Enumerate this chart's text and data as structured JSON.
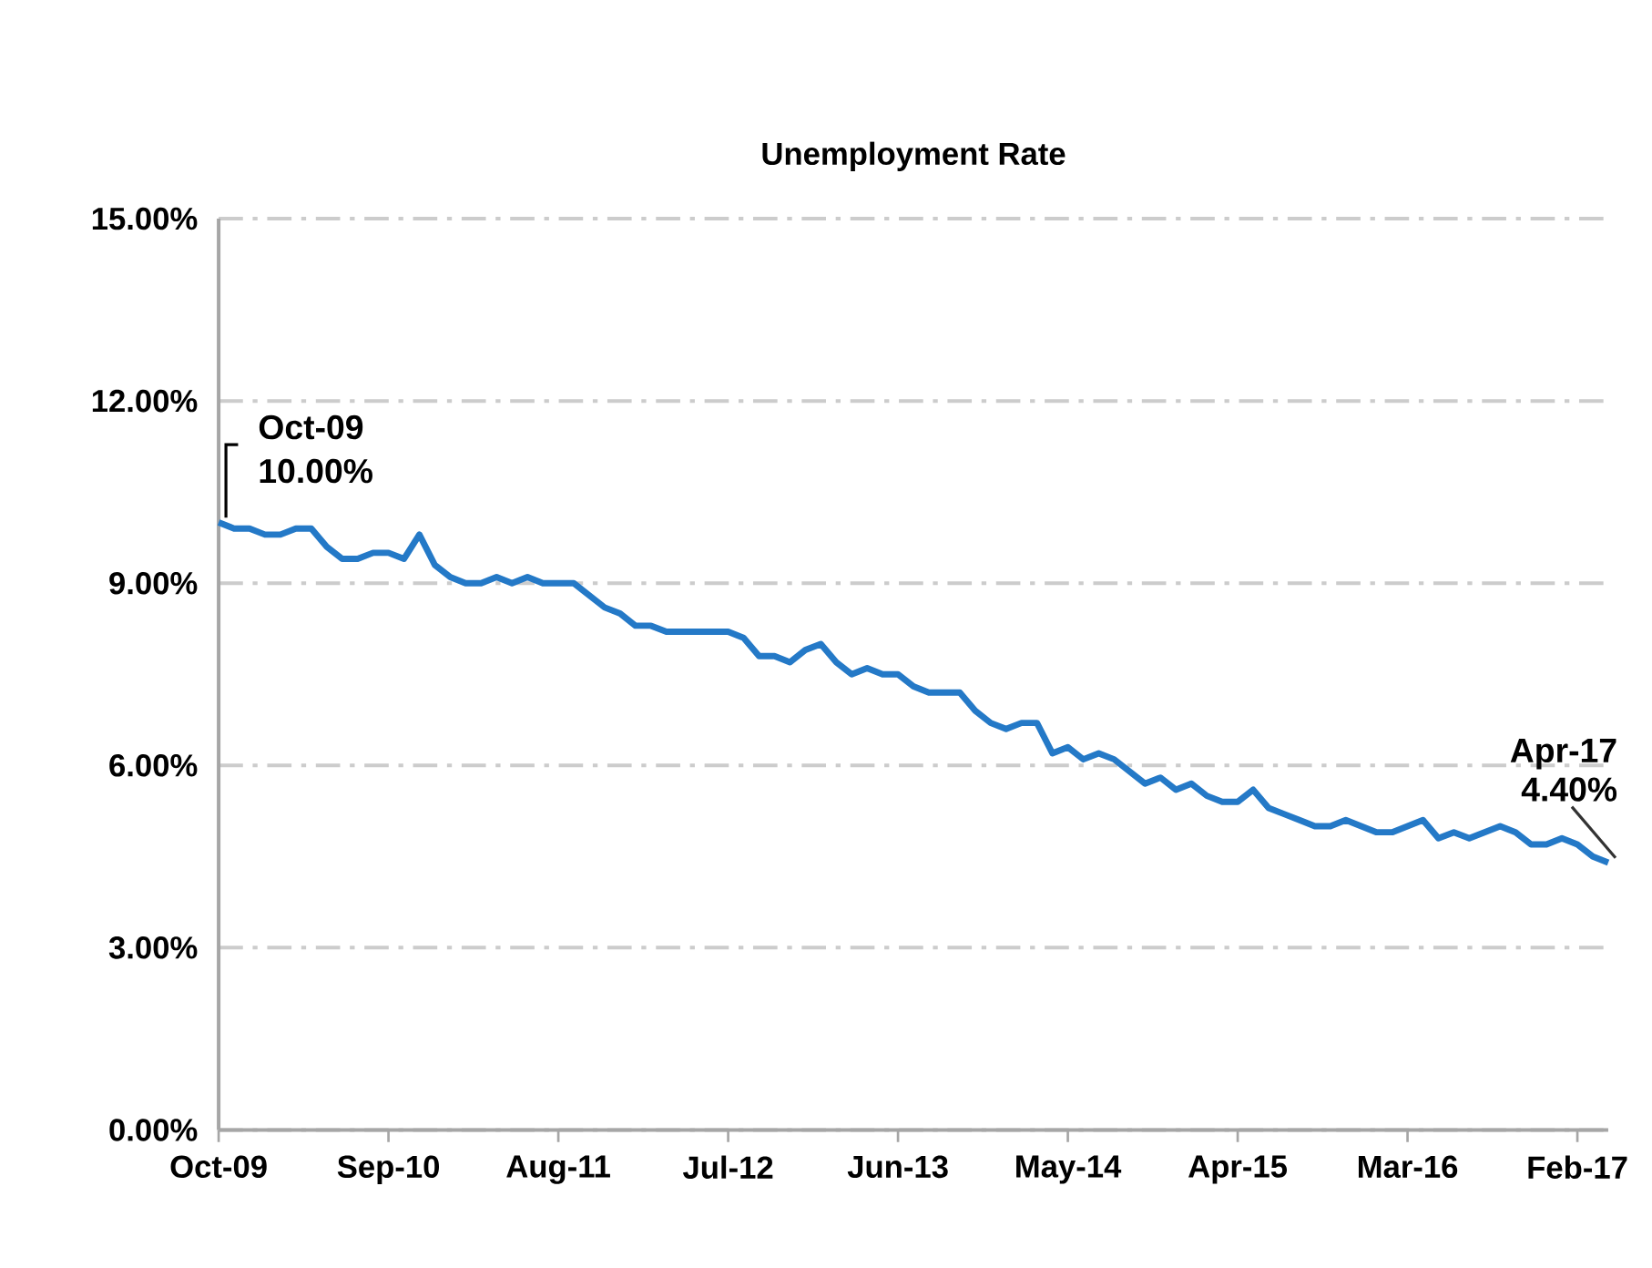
{
  "chart_data": {
    "type": "line",
    "title": "Unemployment Rate",
    "x": [
      "2009-10",
      "2009-11",
      "2009-12",
      "2010-01",
      "2010-02",
      "2010-03",
      "2010-04",
      "2010-05",
      "2010-06",
      "2010-07",
      "2010-08",
      "2010-09",
      "2010-10",
      "2010-11",
      "2010-12",
      "2011-01",
      "2011-02",
      "2011-03",
      "2011-04",
      "2011-05",
      "2011-06",
      "2011-07",
      "2011-08",
      "2011-09",
      "2011-10",
      "2011-11",
      "2011-12",
      "2012-01",
      "2012-02",
      "2012-03",
      "2012-04",
      "2012-05",
      "2012-06",
      "2012-07",
      "2012-08",
      "2012-09",
      "2012-10",
      "2012-11",
      "2012-12",
      "2013-01",
      "2013-02",
      "2013-03",
      "2013-04",
      "2013-05",
      "2013-06",
      "2013-07",
      "2013-08",
      "2013-09",
      "2013-10",
      "2013-11",
      "2013-12",
      "2014-01",
      "2014-02",
      "2014-03",
      "2014-04",
      "2014-05",
      "2014-06",
      "2014-07",
      "2014-08",
      "2014-09",
      "2014-10",
      "2014-11",
      "2014-12",
      "2015-01",
      "2015-02",
      "2015-03",
      "2015-04",
      "2015-05",
      "2015-06",
      "2015-07",
      "2015-08",
      "2015-09",
      "2015-10",
      "2015-11",
      "2015-12",
      "2016-01",
      "2016-02",
      "2016-03",
      "2016-04",
      "2016-05",
      "2016-06",
      "2016-07",
      "2016-08",
      "2016-09",
      "2016-10",
      "2016-11",
      "2016-12",
      "2017-01",
      "2017-02",
      "2017-03",
      "2017-04"
    ],
    "values": [
      10.0,
      9.9,
      9.9,
      9.8,
      9.8,
      9.9,
      9.9,
      9.6,
      9.4,
      9.4,
      9.5,
      9.5,
      9.4,
      9.8,
      9.3,
      9.1,
      9.0,
      9.0,
      9.1,
      9.0,
      9.1,
      9.0,
      9.0,
      9.0,
      8.8,
      8.6,
      8.5,
      8.3,
      8.3,
      8.2,
      8.2,
      8.2,
      8.2,
      8.2,
      8.1,
      7.8,
      7.8,
      7.7,
      7.9,
      8.0,
      7.7,
      7.5,
      7.6,
      7.5,
      7.5,
      7.3,
      7.2,
      7.2,
      7.2,
      6.9,
      6.7,
      6.6,
      6.7,
      6.7,
      6.2,
      6.3,
      6.1,
      6.2,
      6.1,
      5.9,
      5.7,
      5.8,
      5.6,
      5.7,
      5.5,
      5.4,
      5.4,
      5.6,
      5.3,
      5.2,
      5.1,
      5.0,
      5.0,
      5.1,
      5.0,
      4.9,
      4.9,
      5.0,
      5.1,
      4.8,
      4.9,
      4.8,
      4.9,
      5.0,
      4.9,
      4.7,
      4.7,
      4.8,
      4.7,
      4.5,
      4.4
    ],
    "color": "#2479c7",
    "xlim": [
      "2009-10",
      "2017-04"
    ],
    "xticks": [
      {
        "value": "2009-10",
        "label": "Oct-09"
      },
      {
        "value": "2010-09",
        "label": "Sep-10"
      },
      {
        "value": "2011-08",
        "label": "Aug-11"
      },
      {
        "value": "2012-07",
        "label": "Jul-12"
      },
      {
        "value": "2013-06",
        "label": "Jun-13"
      },
      {
        "value": "2014-05",
        "label": "May-14"
      },
      {
        "value": "2015-04",
        "label": "Apr-15"
      },
      {
        "value": "2016-03",
        "label": "Mar-16"
      },
      {
        "value": "2017-02",
        "label": "Feb-17"
      }
    ],
    "ylim": [
      0,
      15
    ],
    "yticks": [
      {
        "value": 0,
        "label": "0.00%"
      },
      {
        "value": 3,
        "label": "3.00%"
      },
      {
        "value": 6,
        "label": "6.00%"
      },
      {
        "value": 9,
        "label": "9.00%"
      },
      {
        "value": 12,
        "label": "12.00%"
      },
      {
        "value": 15,
        "label": "15.00%"
      }
    ],
    "grid": "y",
    "annotations": [
      {
        "text": "Oct-09",
        "x": "2009-10",
        "y": 10
      },
      {
        "text": "10.00%",
        "x": "2009-10",
        "y": 10
      },
      {
        "text": "Apr-17",
        "x": "2017-04",
        "y": 4.4
      },
      {
        "text": "4.40%",
        "x": "2017-04",
        "y": 4.4
      }
    ]
  }
}
